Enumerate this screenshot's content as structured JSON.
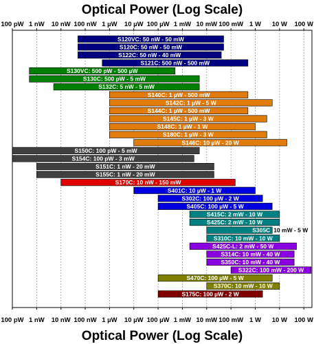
{
  "chart_data": {
    "type": "bar",
    "orientation": "horizontal",
    "title_top": "Optical Power (Log Scale)",
    "title_bottom": "Optical Power (Log Scale)",
    "x_scale": "log",
    "xlim": [
      "100 pW",
      "300 W"
    ],
    "xlim_watts": [
      1e-10,
      300
    ],
    "grid": true,
    "x_tick_labels": [
      "100 pW",
      "1 nW",
      "10 nW",
      "100 nW",
      "1 µW",
      "10 µW",
      "100 µW",
      "1 mW",
      "10 mW",
      "100 mW",
      "1 W",
      "10 W",
      "100 W"
    ],
    "x_tick_values_watts": [
      1e-10,
      1e-09,
      1e-08,
      1e-07,
      1e-06,
      1e-05,
      0.0001,
      0.001,
      0.01,
      0.1,
      1,
      10,
      100
    ],
    "series": [
      {
        "label": "S120VC: 50 nW - 50 mW",
        "min_w": 5e-08,
        "max_w": 0.05,
        "color": "#000080"
      },
      {
        "label": "S120C: 50 nW - 50 mW",
        "min_w": 5e-08,
        "max_w": 0.05,
        "color": "#000080"
      },
      {
        "label": "S122C: 50 nW - 40 mW",
        "min_w": 5e-08,
        "max_w": 0.04,
        "color": "#000080"
      },
      {
        "label": "S121C: 500 nW - 500 mW",
        "min_w": 5e-07,
        "max_w": 0.5,
        "color": "#000080"
      },
      {
        "label": "S130VC: 500 pW - 500 µW",
        "min_w": 5e-10,
        "max_w": 0.0005,
        "color": "#008000"
      },
      {
        "label": "S130C: 500 pW - 5 mW",
        "min_w": 5e-10,
        "max_w": 0.005,
        "color": "#008000"
      },
      {
        "label": "S132C: 5 nW - 5 mW",
        "min_w": 5e-09,
        "max_w": 0.005,
        "color": "#008000"
      },
      {
        "label": "S140C: 1 µW - 500 mW",
        "min_w": 1e-06,
        "max_w": 0.5,
        "color": "#E07B0C"
      },
      {
        "label": "S142C: 1 µW - 5 W",
        "min_w": 1e-06,
        "max_w": 5,
        "color": "#E07B0C"
      },
      {
        "label": "S144C: 1 µW - 500 mW",
        "min_w": 1e-06,
        "max_w": 0.5,
        "color": "#E07B0C"
      },
      {
        "label": "S145C: 1 µW - 3 W",
        "min_w": 1e-06,
        "max_w": 3,
        "color": "#E07B0C"
      },
      {
        "label": "S148C: 1 µW - 1 W",
        "min_w": 1e-06,
        "max_w": 1,
        "color": "#E07B0C"
      },
      {
        "label": "S180C: 1 µW - 3 W",
        "min_w": 1e-06,
        "max_w": 3,
        "color": "#E07B0C"
      },
      {
        "label": "S146C: 10 µW - 20 W",
        "min_w": 1e-05,
        "max_w": 20,
        "color": "#E07B0C"
      },
      {
        "label": "S150C: 100 pW - 5 mW",
        "min_w": 1e-10,
        "max_w": 0.005,
        "color": "#404040"
      },
      {
        "label": "S154C: 100 pW - 3 mW",
        "min_w": 1e-10,
        "max_w": 0.003,
        "color": "#404040"
      },
      {
        "label": "S151C: 1 nW - 20 mW",
        "min_w": 1e-09,
        "max_w": 0.02,
        "color": "#404040"
      },
      {
        "label": "S155C: 1 nW - 20 mW",
        "min_w": 1e-09,
        "max_w": 0.02,
        "color": "#404040"
      },
      {
        "label": "S170C: 10 nW - 150 mW",
        "min_w": 1e-08,
        "max_w": 0.15,
        "color": "#E00000"
      },
      {
        "label": "S401C: 10 µW - 1 W",
        "min_w": 1e-05,
        "max_w": 1,
        "color": "#0000E0"
      },
      {
        "label": "S302C: 100 µW - 2 W",
        "min_w": 0.0001,
        "max_w": 2,
        "color": "#0000E0"
      },
      {
        "label": "S405C: 100 µW - 5 W",
        "min_w": 0.0001,
        "max_w": 5,
        "color": "#0000E0"
      },
      {
        "label": "S415C: 2 mW - 10 W",
        "min_w": 0.002,
        "max_w": 10,
        "color": "#008080"
      },
      {
        "label": "S425C: 2 mW - 10 W",
        "min_w": 0.002,
        "max_w": 10,
        "color": "#008080"
      },
      {
        "label": "S305C",
        "outside_label": "10 mW - 5 W",
        "min_w": 0.01,
        "max_w": 5,
        "color": "#008080"
      },
      {
        "label": "S310C: 10 mW - 10 W",
        "min_w": 0.01,
        "max_w": 10,
        "color": "#008080"
      },
      {
        "label": "S425C-L: 2 mW - 50 W",
        "min_w": 0.002,
        "max_w": 50,
        "color": "#8B00E0"
      },
      {
        "label": "S314C: 10 mW - 40 W",
        "min_w": 0.01,
        "max_w": 40,
        "color": "#8B00E0"
      },
      {
        "label": "S350C: 10 mW - 40 W",
        "min_w": 0.01,
        "max_w": 40,
        "color": "#8B00E0"
      },
      {
        "label": "S322C: 100 mW - 200 W",
        "min_w": 0.1,
        "max_w": 200,
        "color": "#8B00E0"
      },
      {
        "label": "S470C: 100 µW - 5 W",
        "min_w": 0.0001,
        "max_w": 5,
        "color": "#808000"
      },
      {
        "label": "S370C: 10 mW - 10 W",
        "min_w": 0.01,
        "max_w": 10,
        "color": "#808000"
      },
      {
        "label": "S175C: 100 µW - 2 W",
        "min_w": 0.0001,
        "max_w": 2,
        "color": "#800000"
      }
    ]
  }
}
